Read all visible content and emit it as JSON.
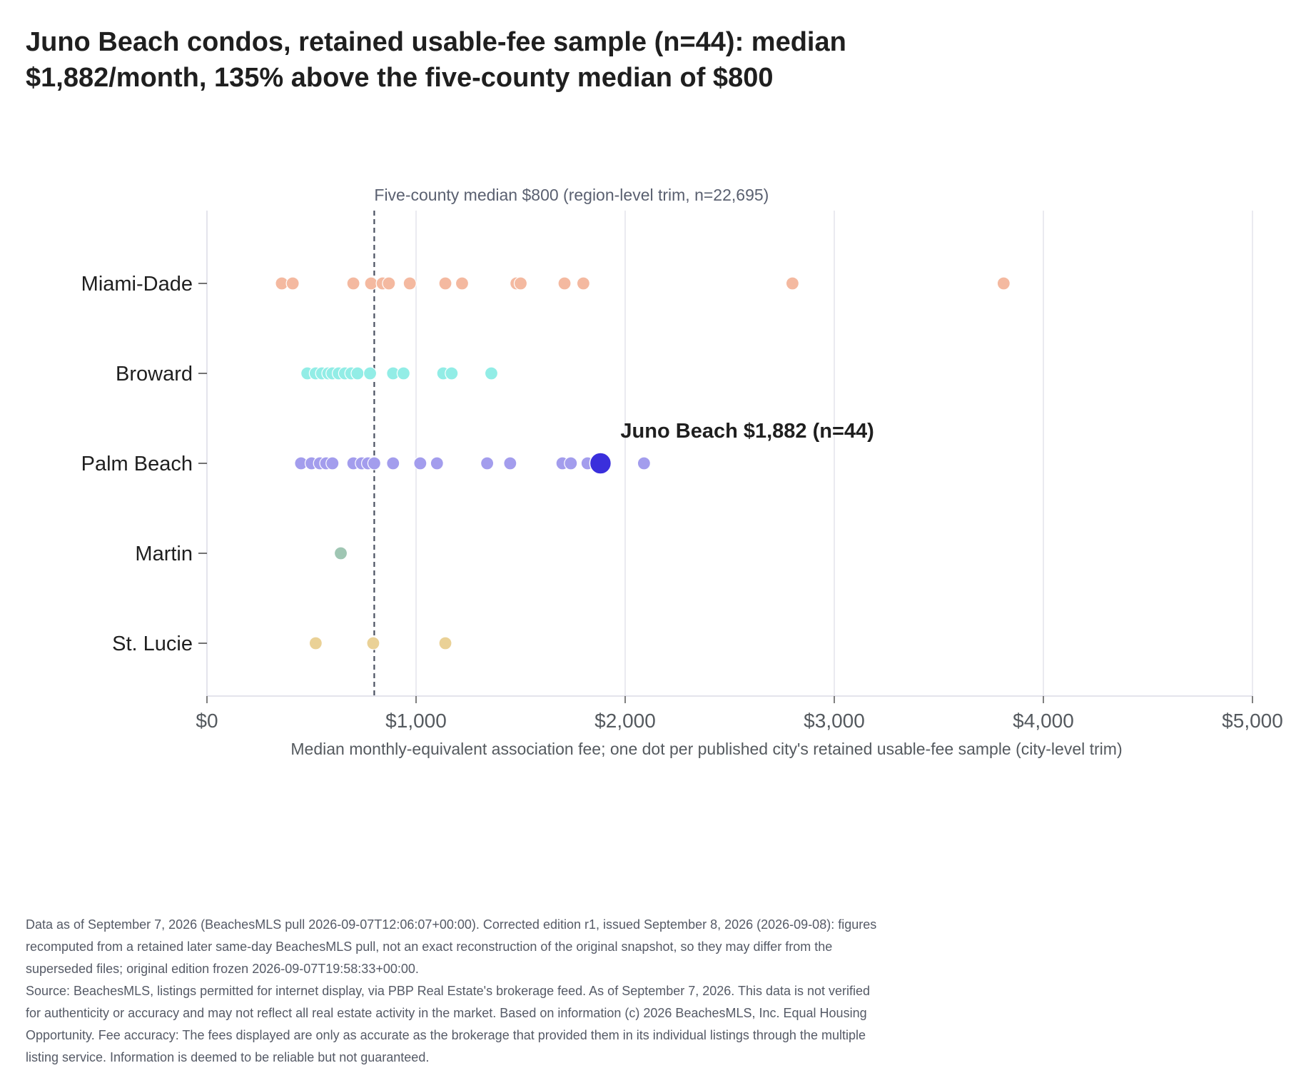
{
  "title_lines": [
    "Juno Beach condos, retained usable-fee sample (n=44): median",
    "$1,882/month, 135% above the five-county median of $800"
  ],
  "footnote_lines": [
    "Data as of September 7, 2026 (BeachesMLS pull 2026-09-07T12:06:07+00:00). Corrected edition r1, issued September 8, 2026 (2026-09-08): figures",
    "recomputed from a retained later same-day BeachesMLS pull, not an exact reconstruction of the original snapshot, so they may differ from the",
    "superseded files; original edition frozen 2026-09-07T19:58:33+00:00.",
    "Source: BeachesMLS, listings permitted for internet display, via PBP Real Estate's brokerage feed. As of September 7, 2026. This data is not verified",
    "for authenticity or accuracy and may not reflect all real estate activity in the market. Based on information (c) 2026 BeachesMLS, Inc. Equal Housing",
    "Opportunity. Fee accuracy: The fees displayed are only as accurate as the brokerage that provided them in its individual listings through the multiple",
    "listing service. Information is deemed to be reliable but not guaranteed."
  ],
  "chart_data": {
    "type": "scatter",
    "title": "Juno Beach condos, retained usable-fee sample (n=44): median $1,882/month, 135% above the five-county median of $800",
    "xlabel": "Median monthly-equivalent association fee; one dot per published city's retained usable-fee sample (city-level trim)",
    "ylabel": "",
    "xlim": [
      0,
      5000
    ],
    "x_ticks": [
      0,
      1000,
      2000,
      3000,
      4000,
      5000
    ],
    "x_tick_labels": [
      "$0",
      "$1,000",
      "$2,000",
      "$3,000",
      "$4,000",
      "$5,000"
    ],
    "categories": [
      "Miami-Dade",
      "Broward",
      "Palm Beach",
      "Martin",
      "St. Lucie"
    ],
    "grid": "vertical",
    "reference_line": {
      "x": 800,
      "label": "Five-county median $800 (region-level trim, n=22,695)"
    },
    "highlight": {
      "category": "Palm Beach",
      "x": 1882,
      "label": "Juno Beach $1,882 (n=44)",
      "color": "#3a2fdc"
    },
    "series": [
      {
        "category": "Miami-Dade",
        "color": "#f4b9a0",
        "values": [
          358,
          410,
          700,
          785,
          840,
          870,
          970,
          1140,
          1220,
          1480,
          1500,
          1710,
          1800,
          2800,
          3810
        ]
      },
      {
        "category": "Broward",
        "color": "#92ede6",
        "values": [
          480,
          520,
          550,
          580,
          600,
          630,
          660,
          690,
          720,
          780,
          890,
          940,
          1130,
          1170,
          1360
        ]
      },
      {
        "category": "Palm Beach",
        "color": "#a39ded",
        "values": [
          450,
          500,
          540,
          570,
          600,
          700,
          740,
          770,
          800,
          890,
          1020,
          1100,
          1340,
          1450,
          1700,
          1740,
          1820,
          2090
        ]
      },
      {
        "category": "Martin",
        "color": "#9fc6b3",
        "values": [
          640
        ]
      },
      {
        "category": "St. Lucie",
        "color": "#ead196",
        "values": [
          520,
          795,
          1140
        ]
      }
    ]
  }
}
